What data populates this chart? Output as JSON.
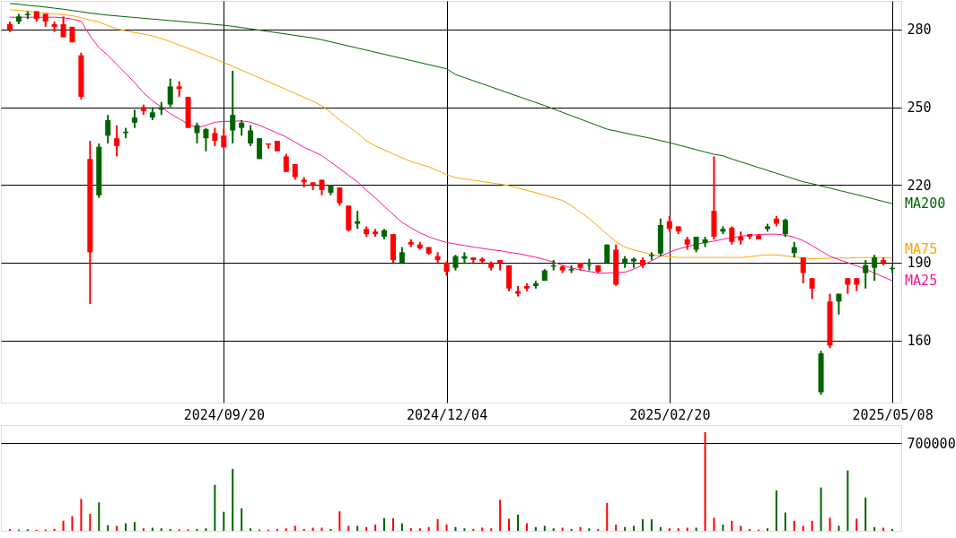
{
  "chart_data": [
    {
      "type": "candlestick",
      "categories": [
        null,
        null,
        null,
        null,
        null,
        null,
        null,
        null,
        null,
        null,
        null,
        null,
        null,
        null,
        null,
        null,
        null,
        null,
        null,
        null,
        null,
        null,
        null,
        null,
        "2024/09/20",
        null,
        null,
        null,
        null,
        null,
        null,
        null,
        null,
        null,
        null,
        null,
        null,
        null,
        null,
        null,
        null,
        null,
        null,
        null,
        null,
        null,
        null,
        null,
        null,
        "2024/12/04",
        null,
        null,
        null,
        null,
        null,
        null,
        null,
        null,
        null,
        null,
        null,
        null,
        null,
        null,
        null,
        null,
        null,
        null,
        null,
        null,
        null,
        null,
        null,
        null,
        "2025/02/20",
        null,
        null,
        null,
        null,
        null,
        null,
        null,
        null,
        null,
        null,
        null,
        null,
        null,
        null,
        null,
        null,
        null,
        null,
        null,
        null,
        null,
        null,
        null,
        null,
        "2025/05/08"
      ],
      "ohlc": [
        [
          282,
          283,
          279,
          280
        ],
        [
          283,
          286,
          282,
          285
        ],
        [
          285.5,
          287,
          284,
          286
        ],
        [
          287,
          287,
          283,
          284
        ],
        [
          286,
          286,
          281,
          283
        ],
        [
          282,
          283,
          279,
          281
        ],
        [
          282,
          285,
          277,
          277
        ],
        [
          281,
          281,
          275,
          275
        ],
        [
          270,
          271,
          253,
          254
        ],
        [
          230,
          237,
          174,
          194
        ],
        [
          216,
          236,
          215,
          234.7
        ],
        [
          239,
          247,
          236,
          245
        ],
        [
          238,
          243,
          231,
          235
        ],
        [
          240,
          242,
          238,
          240.5
        ],
        [
          244,
          249,
          242,
          246
        ],
        [
          250,
          251,
          247,
          248.5
        ],
        [
          246,
          250,
          245,
          248
        ],
        [
          249,
          252,
          247,
          250
        ],
        [
          251,
          261,
          250,
          258
        ],
        [
          258,
          260,
          254,
          257
        ],
        [
          254,
          254,
          242,
          242
        ],
        [
          240,
          244,
          236,
          243
        ],
        [
          238,
          242,
          233,
          241.5
        ],
        [
          240,
          242,
          235,
          237
        ],
        [
          239,
          242,
          234,
          234.5
        ],
        [
          241,
          264,
          236,
          247
        ],
        [
          242,
          245,
          239,
          244
        ],
        [
          236,
          243,
          235,
          241
        ],
        [
          230,
          238,
          230,
          238
        ],
        [
          236,
          236,
          234,
          235.5
        ],
        [
          237,
          237,
          233,
          233
        ],
        [
          231,
          232,
          225,
          225
        ],
        [
          228,
          228,
          222,
          223
        ],
        [
          222,
          223,
          219,
          221
        ],
        [
          221,
          221,
          218,
          220
        ],
        [
          222,
          222,
          216,
          218
        ],
        [
          217,
          220,
          216,
          220
        ],
        [
          219,
          219,
          212,
          213
        ],
        [
          212,
          212,
          202,
          202.5
        ],
        [
          205,
          210,
          203,
          206
        ],
        [
          203,
          204,
          200,
          201
        ],
        [
          202,
          203,
          200,
          201
        ],
        [
          200,
          203,
          199,
          202.5
        ],
        [
          201,
          201,
          190,
          191
        ],
        [
          190,
          196,
          190,
          194
        ],
        [
          198,
          199,
          196,
          197
        ],
        [
          197,
          198,
          195,
          195.5
        ],
        [
          196,
          196,
          193,
          193.5
        ],
        [
          192.5,
          194,
          190,
          191
        ],
        [
          190,
          190.5,
          185,
          186.5
        ],
        [
          188,
          193,
          187,
          192.5
        ],
        [
          191.5,
          194,
          190,
          192.5
        ],
        [
          192,
          192,
          190,
          191
        ],
        [
          191.5,
          192,
          190,
          190.5
        ],
        [
          190,
          190.5,
          187,
          188
        ],
        [
          191,
          191,
          187,
          190
        ],
        [
          189,
          189,
          179,
          180
        ],
        [
          179,
          181,
          177,
          178
        ],
        [
          181,
          182,
          179,
          180
        ],
        [
          181,
          183,
          180,
          182
        ],
        [
          183,
          187.5,
          183,
          187
        ],
        [
          188.5,
          191,
          187,
          189
        ],
        [
          188.5,
          189,
          186,
          187
        ],
        [
          187,
          189,
          186,
          187.5
        ],
        [
          190,
          190,
          187,
          188
        ],
        [
          189,
          191.5,
          187,
          189.3
        ],
        [
          189,
          189,
          186,
          186.5
        ],
        [
          190,
          197,
          190,
          197
        ],
        [
          195,
          197,
          181,
          181.5
        ],
        [
          190,
          192.5,
          188,
          191.5
        ],
        [
          190.5,
          192,
          188,
          191.5
        ],
        [
          191,
          192,
          188,
          189
        ],
        [
          192.5,
          194,
          191,
          193
        ],
        [
          193.5,
          207,
          192.5,
          204.5
        ],
        [
          206,
          208,
          202,
          203
        ],
        [
          204,
          204,
          201,
          202
        ],
        [
          199,
          200,
          195,
          197
        ],
        [
          195,
          200,
          194,
          200
        ],
        [
          197.5,
          200,
          196,
          199
        ],
        [
          210,
          231,
          199,
          200
        ],
        [
          202,
          204,
          201,
          203
        ],
        [
          203.5,
          204,
          197,
          198
        ],
        [
          200,
          202,
          197,
          198.5
        ],
        [
          201,
          201,
          199,
          200
        ],
        [
          200.5,
          201,
          199,
          199
        ],
        [
          203,
          205,
          202,
          204
        ],
        [
          207,
          208,
          204,
          205
        ],
        [
          201,
          207,
          200,
          206.5
        ],
        [
          193.7,
          198,
          192,
          196
        ],
        [
          192,
          192,
          182,
          186
        ],
        [
          184,
          184,
          176,
          180
        ],
        [
          140,
          156,
          139,
          155
        ],
        [
          175,
          178,
          157,
          158
        ],
        [
          175,
          178,
          170,
          178
        ],
        [
          184,
          184,
          178,
          181.5
        ],
        [
          184,
          184,
          179,
          181.5
        ],
        [
          186,
          191,
          180,
          189
        ],
        [
          188,
          193,
          183,
          192
        ],
        [
          191,
          192,
          189,
          190
        ],
        [
          187.5,
          189,
          186,
          188
        ]
      ],
      "colors": [
        "#ff0000",
        "#006400",
        "#006400",
        "#ff0000",
        "#ff0000",
        "#ff0000",
        "#ff0000",
        "#ff0000",
        "#ff0000",
        "#ff0000",
        "#006400",
        "#006400",
        "#ff0000",
        "#006400",
        "#006400",
        "#ff0000",
        "#006400",
        "#006400",
        "#006400",
        "#ff0000",
        "#ff0000",
        "#006400",
        "#006400",
        "#ff0000",
        "#ff0000",
        "#006400",
        "#006400",
        "#006400",
        "#006400",
        "#ff0000",
        "#ff0000",
        "#ff0000",
        "#ff0000",
        "#ff0000",
        "#ff0000",
        "#ff0000",
        "#006400",
        "#ff0000",
        "#ff0000",
        "#006400",
        "#ff0000",
        "#ff0000",
        "#006400",
        "#ff0000",
        "#006400",
        "#ff0000",
        "#ff0000",
        "#ff0000",
        "#ff0000",
        "#ff0000",
        "#006400",
        "#006400",
        "#ff0000",
        "#ff0000",
        "#ff0000",
        "#ff0000",
        "#ff0000",
        "#ff0000",
        "#ff0000",
        "#006400",
        "#006400",
        "#006400",
        "#ff0000",
        "#006400",
        "#ff0000",
        "#006400",
        "#ff0000",
        "#006400",
        "#ff0000",
        "#006400",
        "#006400",
        "#ff0000",
        "#006400",
        "#006400",
        "#ff0000",
        "#ff0000",
        "#ff0000",
        "#006400",
        "#006400",
        "#ff0000",
        "#006400",
        "#ff0000",
        "#ff0000",
        "#ff0000",
        "#ff0000",
        "#006400",
        "#ff0000",
        "#006400",
        "#006400",
        "#ff0000",
        "#ff0000",
        "#006400",
        "#ff0000",
        "#006400",
        "#ff0000",
        "#ff0000",
        "#006400",
        "#006400",
        "#ff0000",
        "#006400"
      ],
      "series": [
        {
          "type": "line",
          "name": "MA200",
          "color": "#006400",
          "values": [
            290,
            289.7,
            289.3,
            289,
            288.6,
            288.2,
            287.8,
            287.3,
            286.8,
            286.3,
            285.9,
            285.5,
            285.2,
            284.9,
            284.6,
            284.3,
            284,
            283.7,
            283.4,
            283.1,
            282.8,
            282.5,
            282.2,
            281.9,
            281.6,
            281.2,
            280.7,
            280.2,
            279.7,
            279.2,
            278.7,
            278.2,
            277.7,
            277.2,
            276.7,
            276,
            275.2,
            274.4,
            273.6,
            272.8,
            272,
            271.2,
            270.4,
            269.6,
            268.8,
            268,
            267.2,
            266.4,
            265.6,
            264.8,
            262.6,
            261.4,
            260.2,
            259,
            257.8,
            256.6,
            255.4,
            254.2,
            253,
            251.8,
            250.6,
            249.3,
            248,
            246.7,
            245.4,
            244.1,
            242.8,
            241.5,
            240.8,
            240,
            239.3,
            238.6,
            237.9,
            237.1,
            236.3,
            235.4,
            234.5,
            233.6,
            232.7,
            231.8,
            231.2,
            230,
            228.9,
            227.8,
            226.7,
            225.6,
            224.5,
            223.4,
            222.3,
            221.2,
            220.5,
            219.6,
            218.8,
            217.9,
            217.1,
            216.2,
            215.4,
            214.5,
            213.6,
            212.8
          ]
        },
        {
          "type": "line",
          "name": "MA75",
          "color": "#ffa500",
          "values": [
            287.6,
            287.3,
            287,
            286.7,
            286.3,
            286,
            285.7,
            285.3,
            284.5,
            283.6,
            282.8,
            281.5,
            280.2,
            279.5,
            278.8,
            278.2,
            277.5,
            276.5,
            275.3,
            274,
            272.7,
            271.4,
            270,
            268.6,
            267.2,
            265.8,
            264.3,
            262.8,
            261.3,
            259.8,
            258.3,
            256.8,
            255.3,
            253.8,
            252.3,
            250.5,
            248,
            245,
            242.5,
            240,
            237,
            235,
            233.5,
            232,
            230.5,
            229,
            228,
            227,
            225.5,
            224,
            222.8,
            222.3,
            221.8,
            221.3,
            220.8,
            220.3,
            219.7,
            218.8,
            217.9,
            217,
            216,
            215,
            214,
            212,
            209.5,
            207,
            204,
            201,
            198,
            196,
            194.9,
            194,
            193.2,
            192.6,
            192.3,
            192,
            192,
            192,
            192,
            192,
            192,
            192,
            192,
            192.3,
            192.7,
            193,
            193,
            192.6,
            192.2,
            191.8,
            191.6,
            191.6,
            191.7,
            191.8,
            191.8,
            191.9,
            192,
            192,
            192,
            192
          ]
        },
        {
          "type": "line",
          "name": "MA25",
          "color": "#ff1493",
          "values": [
            284.7,
            284.7,
            284.7,
            284.7,
            284.7,
            284.7,
            284.5,
            284,
            283.2,
            277.5,
            273,
            270,
            266.5,
            263,
            259.5,
            255.5,
            252.5,
            250,
            247.5,
            245.5,
            243.5,
            242,
            243,
            244.2,
            244.5,
            244.6,
            244.7,
            244.2,
            243,
            241.5,
            240,
            238.5,
            236.5,
            234.5,
            233,
            231.3,
            228.8,
            226.3,
            223.7,
            221.2,
            218,
            215,
            211.8,
            208.6,
            205.5,
            203.5,
            201.5,
            200,
            198.8,
            197.8,
            197.2,
            196.6,
            196,
            195.5,
            195,
            194.6,
            194,
            193.5,
            192.8,
            192.1,
            191.2,
            190.2,
            189,
            188,
            187.2,
            186.6,
            186,
            186,
            186.2,
            186.3,
            187.5,
            189,
            190.7,
            192.5,
            194,
            195.3,
            196.2,
            197,
            197.8,
            198.3,
            199,
            199.6,
            200.2,
            200.6,
            200.8,
            201,
            201,
            200.6,
            199.8,
            198.5,
            196.6,
            194.5,
            192.5,
            191.2,
            190,
            188.8,
            187.5,
            186,
            184.5,
            183
          ]
        }
      ],
      "ylim": [
        136,
        291
      ],
      "yticks": [
        160,
        190,
        220,
        250,
        280
      ],
      "grid": true,
      "line_style": "solid",
      "marker": "none"
    },
    {
      "type": "bar",
      "categories": [
        null,
        null,
        null,
        null,
        null,
        null,
        null,
        null,
        null,
        null,
        null,
        null,
        null,
        null,
        null,
        null,
        null,
        null,
        null,
        null,
        null,
        null,
        null,
        null,
        null,
        null,
        null,
        null,
        null,
        null,
        null,
        null,
        null,
        null,
        null,
        null,
        null,
        null,
        null,
        null,
        null,
        null,
        null,
        null,
        null,
        null,
        null,
        null,
        null,
        null,
        null,
        null,
        null,
        null,
        null,
        null,
        null,
        null,
        null,
        null,
        null,
        null,
        null,
        null,
        null,
        null,
        null,
        null,
        null,
        null,
        null,
        null,
        null,
        null,
        null,
        null,
        null,
        null,
        null,
        null,
        null,
        null,
        null,
        null,
        null,
        null,
        null,
        null,
        null,
        null,
        null,
        null,
        null,
        null,
        null,
        null,
        null,
        null,
        null,
        null
      ],
      "values": [
        15000,
        10000,
        12000,
        8000,
        10000,
        15000,
        81000,
        117000,
        255000,
        136000,
        226000,
        45000,
        40000,
        60000,
        70000,
        20000,
        25000,
        20000,
        15000,
        12000,
        12000,
        15000,
        20000,
        367000,
        152000,
        493000,
        179000,
        20000,
        10000,
        10000,
        15000,
        20000,
        40000,
        15000,
        25000,
        25000,
        15000,
        155000,
        40000,
        40000,
        30000,
        50000,
        100000,
        100000,
        60000,
        20000,
        20000,
        30000,
        93000,
        50000,
        30000,
        20000,
        15000,
        25000,
        20000,
        248000,
        97000,
        129000,
        60000,
        30000,
        40000,
        20000,
        25000,
        15000,
        30000,
        20000,
        15000,
        223000,
        50000,
        30000,
        40000,
        92000,
        92000,
        30000,
        20000,
        20000,
        25000,
        25000,
        786000,
        104000,
        50000,
        80000,
        40000,
        15000,
        10000,
        20000,
        322000,
        146000,
        80000,
        40000,
        80000,
        345000,
        104000,
        40000,
        481000,
        97000,
        265000,
        30000,
        25000,
        15000
      ],
      "colors": [
        "#ff0000",
        "#006400",
        "#006400",
        "#ff0000",
        "#ff0000",
        "#ff0000",
        "#ff0000",
        "#ff0000",
        "#ff0000",
        "#ff0000",
        "#006400",
        "#006400",
        "#ff0000",
        "#006400",
        "#006400",
        "#ff0000",
        "#006400",
        "#006400",
        "#006400",
        "#ff0000",
        "#ff0000",
        "#006400",
        "#006400",
        "#006400",
        "#006400",
        "#006400",
        "#006400",
        "#006400",
        "#006400",
        "#ff0000",
        "#ff0000",
        "#ff0000",
        "#ff0000",
        "#ff0000",
        "#ff0000",
        "#ff0000",
        "#006400",
        "#ff0000",
        "#ff0000",
        "#006400",
        "#ff0000",
        "#ff0000",
        "#006400",
        "#ff0000",
        "#006400",
        "#ff0000",
        "#ff0000",
        "#ff0000",
        "#ff0000",
        "#ff0000",
        "#006400",
        "#006400",
        "#ff0000",
        "#ff0000",
        "#ff0000",
        "#ff0000",
        "#ff0000",
        "#006400",
        "#ff0000",
        "#006400",
        "#006400",
        "#006400",
        "#ff0000",
        "#006400",
        "#ff0000",
        "#006400",
        "#ff0000",
        "#ff0000",
        "#ff0000",
        "#006400",
        "#006400",
        "#006400",
        "#006400",
        "#006400",
        "#ff0000",
        "#ff0000",
        "#ff0000",
        "#006400",
        "#ff0000",
        "#ff0000",
        "#006400",
        "#ff0000",
        "#ff0000",
        "#ff0000",
        "#ff0000",
        "#006400",
        "#006400",
        "#006400",
        "#ff0000",
        "#ff0000",
        "#ff0000",
        "#006400",
        "#ff0000",
        "#006400",
        "#006400",
        "#ff0000",
        "#006400",
        "#006400",
        "#ff0000",
        "#006400"
      ],
      "ylim": [
        0,
        843000
      ],
      "yticks": [
        700000
      ],
      "grid": "y",
      "tick_labels": "y"
    }
  ]
}
